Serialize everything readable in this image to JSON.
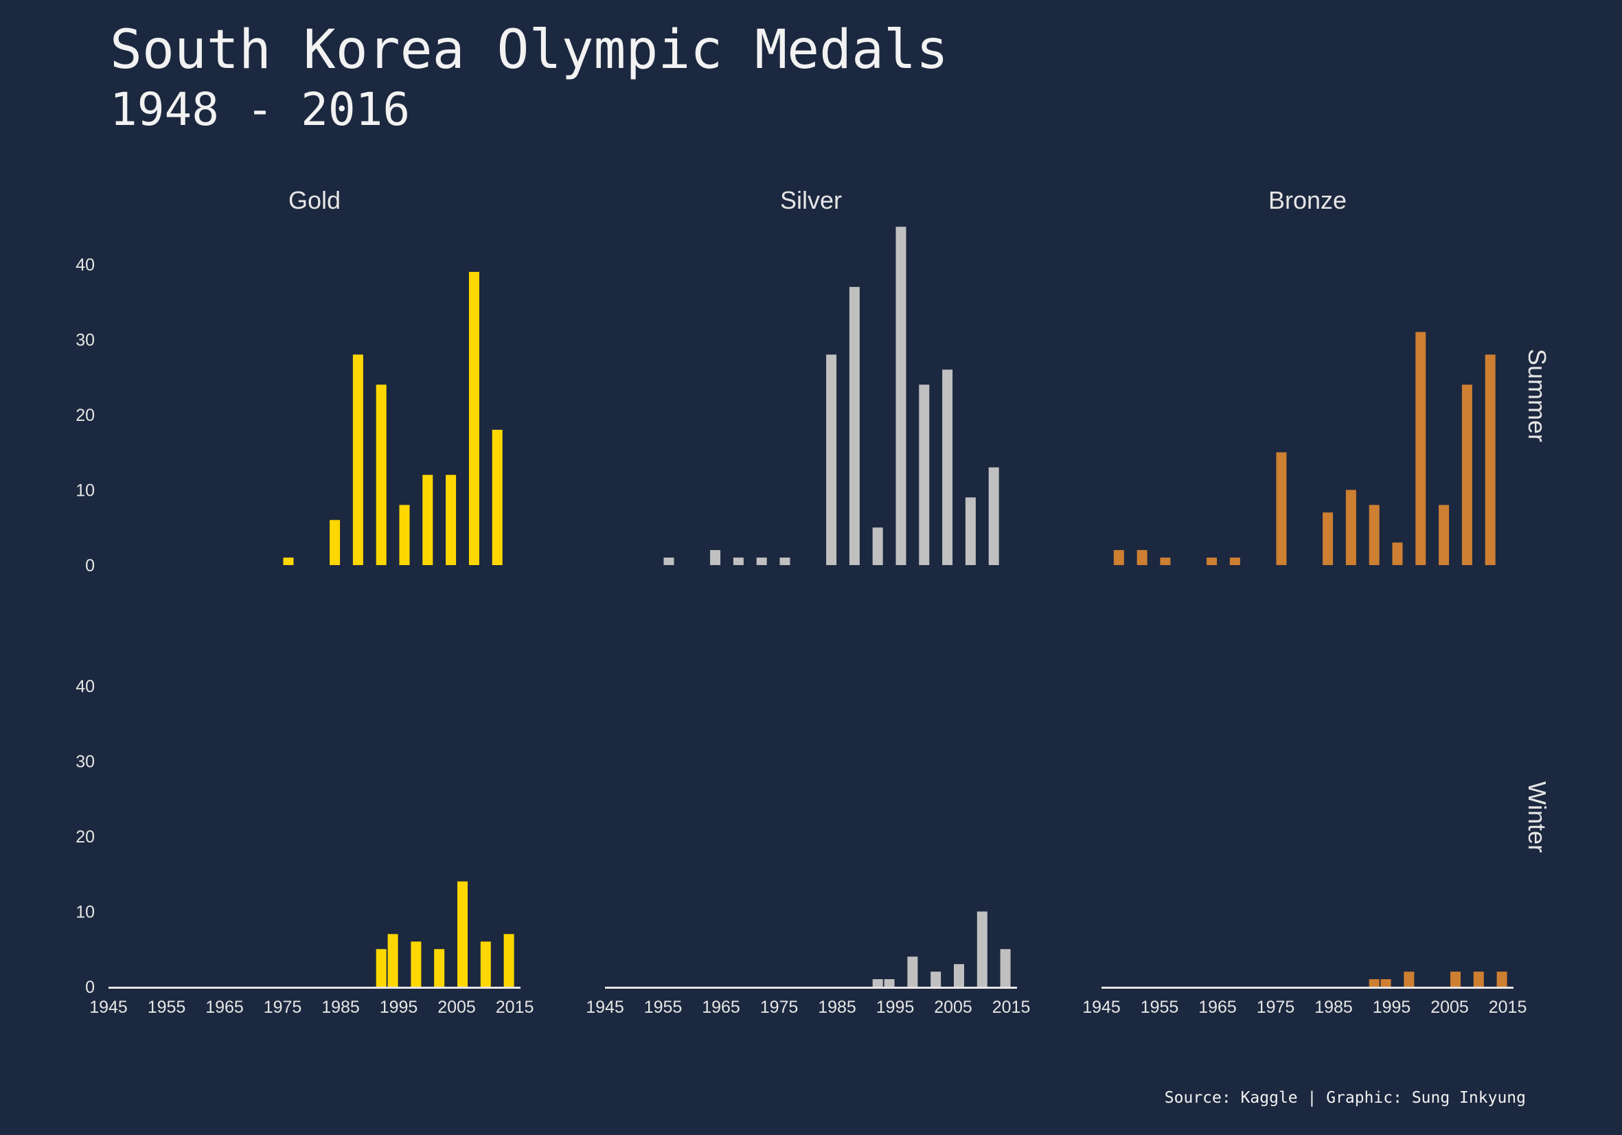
{
  "title": "South Korea Olympic Medals",
  "subtitle": "1948 - 2016",
  "caption": "Source: Kaggle | Graphic: Sung Inkyung",
  "colors": {
    "background": "#1c283f",
    "gold": "#ffd700",
    "silver": "#c0c0c0",
    "bronze": "#cd7f32",
    "text": "#e6e6e6",
    "baseline": "#e6e6e6"
  },
  "chart_data": {
    "type": "bar",
    "facet_columns": [
      "Gold",
      "Silver",
      "Bronze"
    ],
    "facet_rows": [
      "Summer",
      "Winter"
    ],
    "ylim": [
      0,
      45
    ],
    "y_ticks": [
      0,
      10,
      20,
      30,
      40
    ],
    "xlim": [
      1945,
      2016
    ],
    "x_ticks": [
      1945,
      1955,
      1965,
      1975,
      1985,
      1995,
      2005,
      2015
    ],
    "grid": false,
    "panels": [
      {
        "season": "Summer",
        "medal": "Gold",
        "color_key": "gold",
        "points": [
          {
            "x": 1976,
            "y": 1
          },
          {
            "x": 1984,
            "y": 6
          },
          {
            "x": 1988,
            "y": 28
          },
          {
            "x": 1992,
            "y": 24
          },
          {
            "x": 1996,
            "y": 8
          },
          {
            "x": 2000,
            "y": 12
          },
          {
            "x": 2004,
            "y": 12
          },
          {
            "x": 2008,
            "y": 39
          },
          {
            "x": 2012,
            "y": 18
          }
        ]
      },
      {
        "season": "Summer",
        "medal": "Silver",
        "color_key": "silver",
        "points": [
          {
            "x": 1956,
            "y": 1
          },
          {
            "x": 1964,
            "y": 2
          },
          {
            "x": 1968,
            "y": 1
          },
          {
            "x": 1972,
            "y": 1
          },
          {
            "x": 1976,
            "y": 1
          },
          {
            "x": 1984,
            "y": 28
          },
          {
            "x": 1988,
            "y": 37
          },
          {
            "x": 1992,
            "y": 5
          },
          {
            "x": 1996,
            "y": 45
          },
          {
            "x": 2000,
            "y": 24
          },
          {
            "x": 2004,
            "y": 26
          },
          {
            "x": 2008,
            "y": 9
          },
          {
            "x": 2012,
            "y": 13
          }
        ]
      },
      {
        "season": "Summer",
        "medal": "Bronze",
        "color_key": "bronze",
        "points": [
          {
            "x": 1948,
            "y": 2
          },
          {
            "x": 1952,
            "y": 2
          },
          {
            "x": 1956,
            "y": 1
          },
          {
            "x": 1964,
            "y": 1
          },
          {
            "x": 1968,
            "y": 1
          },
          {
            "x": 1976,
            "y": 15
          },
          {
            "x": 1984,
            "y": 7
          },
          {
            "x": 1988,
            "y": 10
          },
          {
            "x": 1992,
            "y": 8
          },
          {
            "x": 1996,
            "y": 3
          },
          {
            "x": 2000,
            "y": 31
          },
          {
            "x": 2004,
            "y": 8
          },
          {
            "x": 2008,
            "y": 24
          },
          {
            "x": 2012,
            "y": 28
          }
        ]
      },
      {
        "season": "Winter",
        "medal": "Gold",
        "color_key": "gold",
        "points": [
          {
            "x": 1992,
            "y": 5
          },
          {
            "x": 1994,
            "y": 7
          },
          {
            "x": 1998,
            "y": 6
          },
          {
            "x": 2002,
            "y": 5
          },
          {
            "x": 2006,
            "y": 14
          },
          {
            "x": 2010,
            "y": 6
          },
          {
            "x": 2014,
            "y": 7
          }
        ]
      },
      {
        "season": "Winter",
        "medal": "Silver",
        "color_key": "silver",
        "points": [
          {
            "x": 1992,
            "y": 1
          },
          {
            "x": 1994,
            "y": 1
          },
          {
            "x": 1998,
            "y": 4
          },
          {
            "x": 2002,
            "y": 2
          },
          {
            "x": 2006,
            "y": 3
          },
          {
            "x": 2010,
            "y": 10
          },
          {
            "x": 2014,
            "y": 5
          }
        ]
      },
      {
        "season": "Winter",
        "medal": "Bronze",
        "color_key": "bronze",
        "points": [
          {
            "x": 1992,
            "y": 1
          },
          {
            "x": 1994,
            "y": 1
          },
          {
            "x": 1998,
            "y": 2
          },
          {
            "x": 2006,
            "y": 2
          },
          {
            "x": 2010,
            "y": 2
          },
          {
            "x": 2014,
            "y": 2
          }
        ]
      }
    ]
  }
}
